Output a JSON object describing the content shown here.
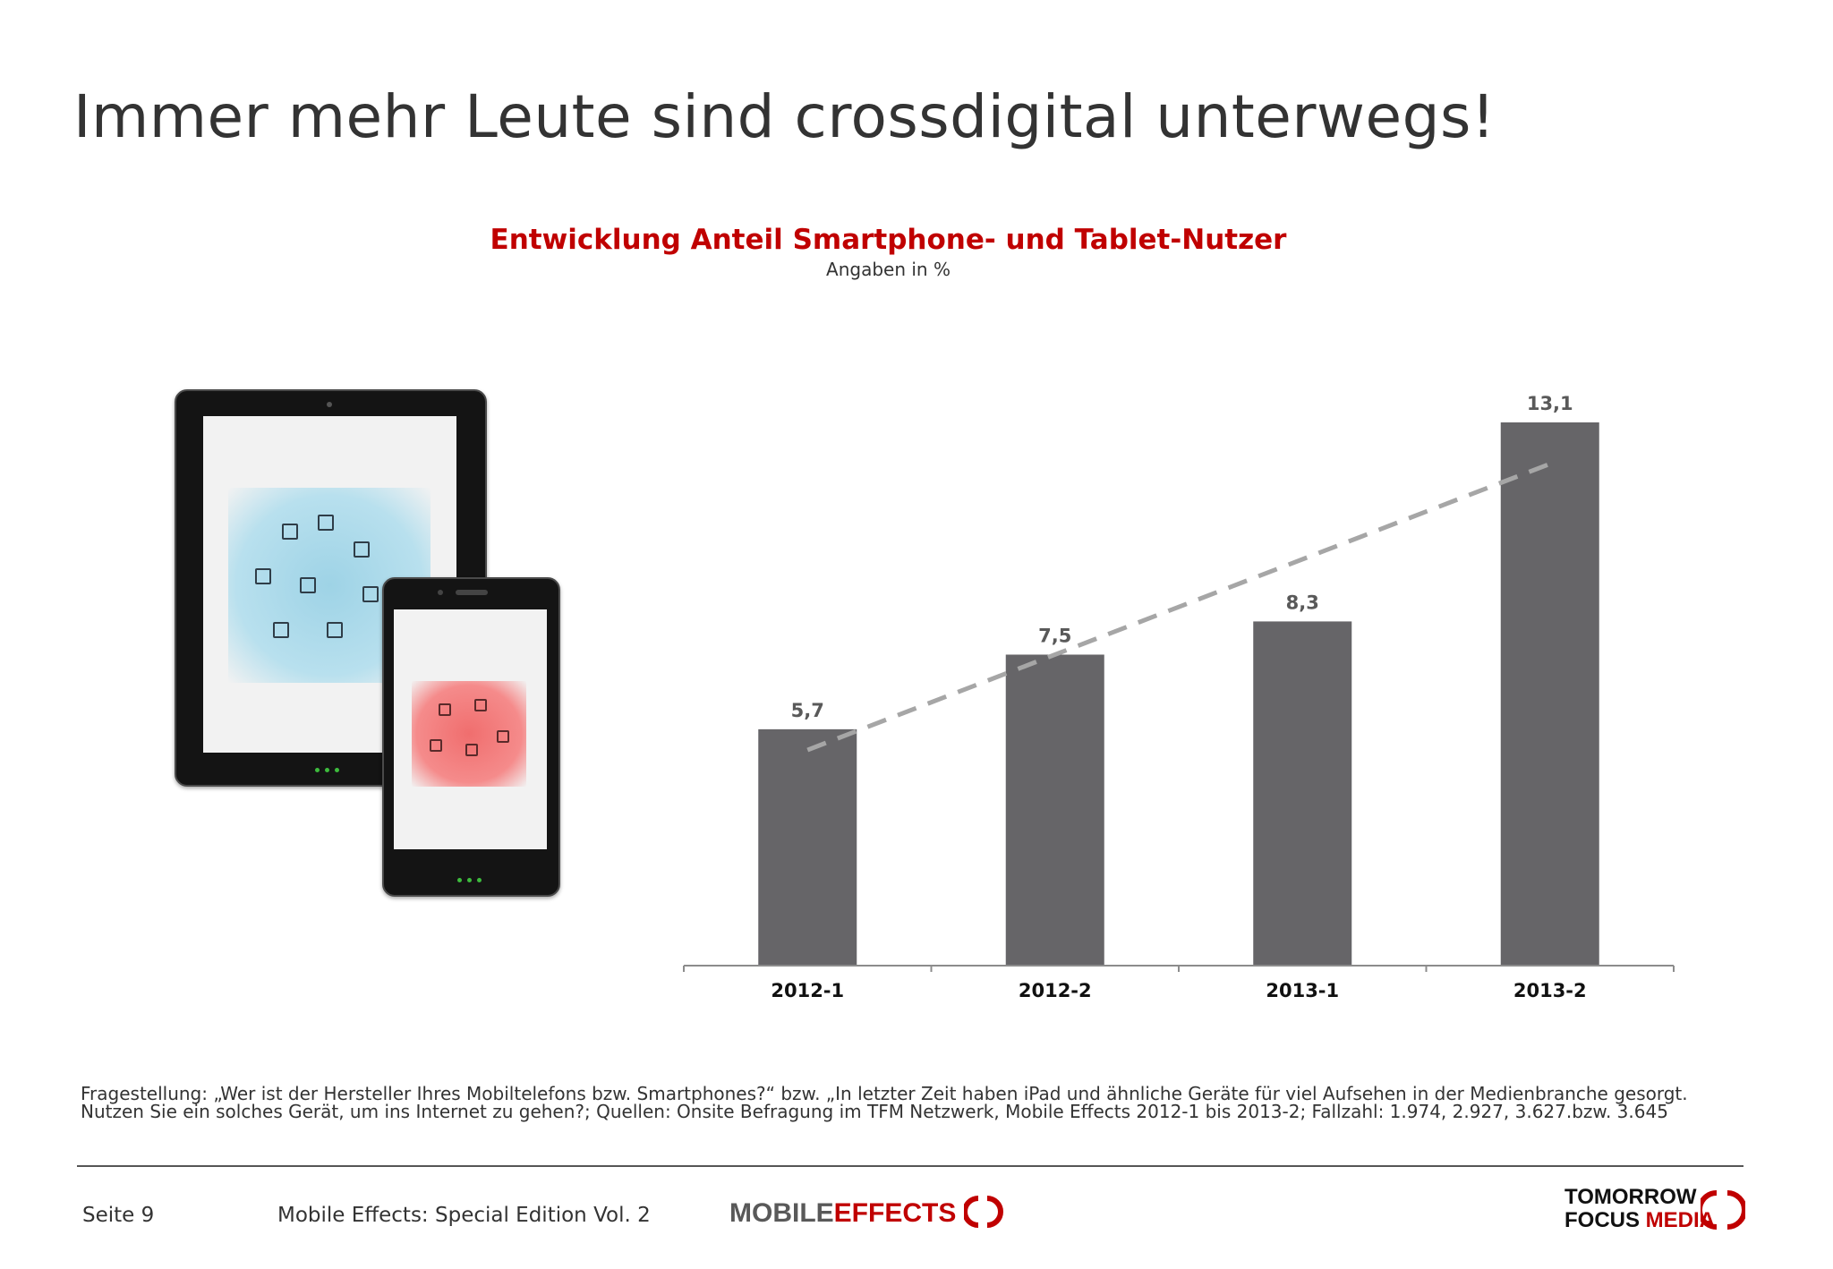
{
  "page": {
    "title": "Immer mehr Leute sind crossdigital unterwegs!"
  },
  "chart_data": {
    "type": "bar",
    "title": "Entwicklung Anteil Smartphone- und Tablet-Nutzer",
    "subtitle": "Angaben in %",
    "categories": [
      "2012-1",
      "2012-2",
      "2013-1",
      "2013-2"
    ],
    "values": [
      5.7,
      7.5,
      8.3,
      13.1
    ],
    "value_labels": [
      "5,7",
      "7,5",
      "8,3",
      "13,1"
    ],
    "trendline": true,
    "grid": false,
    "bar_color": "#666568",
    "trend_color": "#a6a6a6",
    "ylim": [
      0,
      14
    ]
  },
  "footnote": "Fragestellung: „Wer ist der Hersteller Ihres Mobiltelefons bzw. Smartphones?“ bzw. „In letzter Zeit haben iPad und ähnliche Geräte für viel Aufsehen in der Medienbranche gesorgt. Nutzen Sie ein solches Gerät, um ins Internet zu gehen?; Quellen: Onsite Befragung im TFM Netzwerk, Mobile Effects 2012-1 bis 2013-2; Fallzahl: 1.974, 2.927, 3.627.bzw. 3.645",
  "footer": {
    "page_label": "Seite 9",
    "edition": "Mobile Effects: Special Edition Vol. 2",
    "logo_mobile_1": "MOBILE",
    "logo_mobile_2": "EFFECTS",
    "logo_tfm_1": "TOMORROW",
    "logo_tfm_2a": "FOCUS ",
    "logo_tfm_2b": "MEDIA"
  },
  "colors": {
    "accent": "#c00000",
    "text": "#333333"
  }
}
